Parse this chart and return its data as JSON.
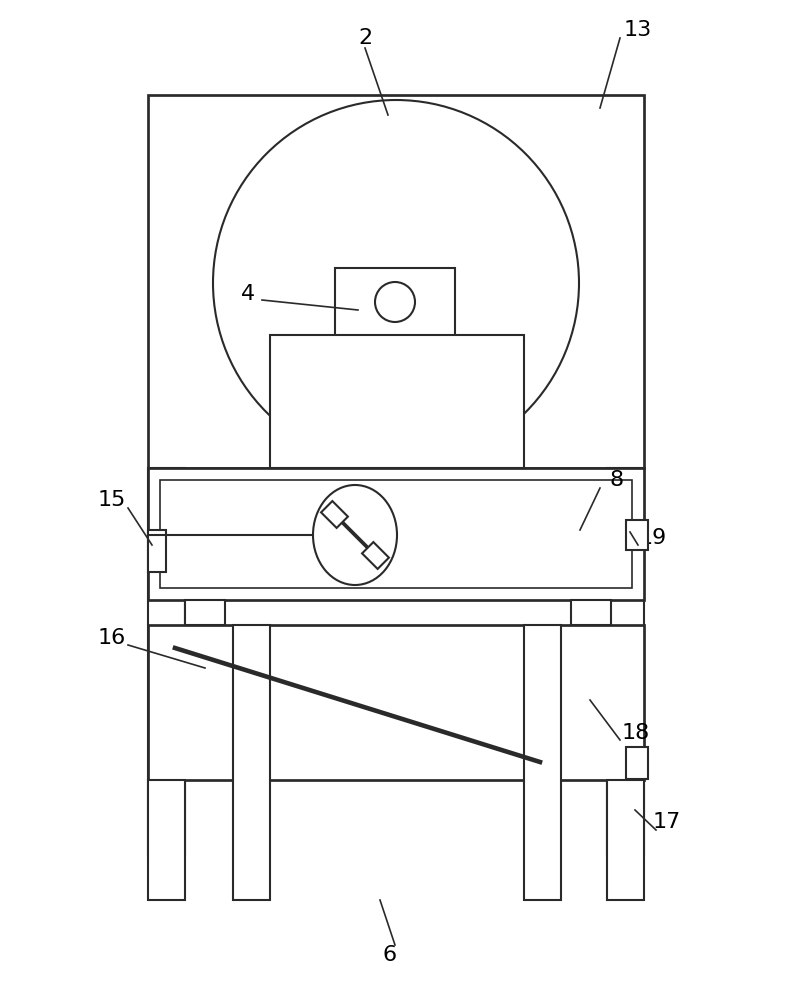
{
  "bg_color": "#ffffff",
  "line_color": "#2a2a2a",
  "line_width": 1.5,
  "fig_width": 7.91,
  "fig_height": 10.0
}
